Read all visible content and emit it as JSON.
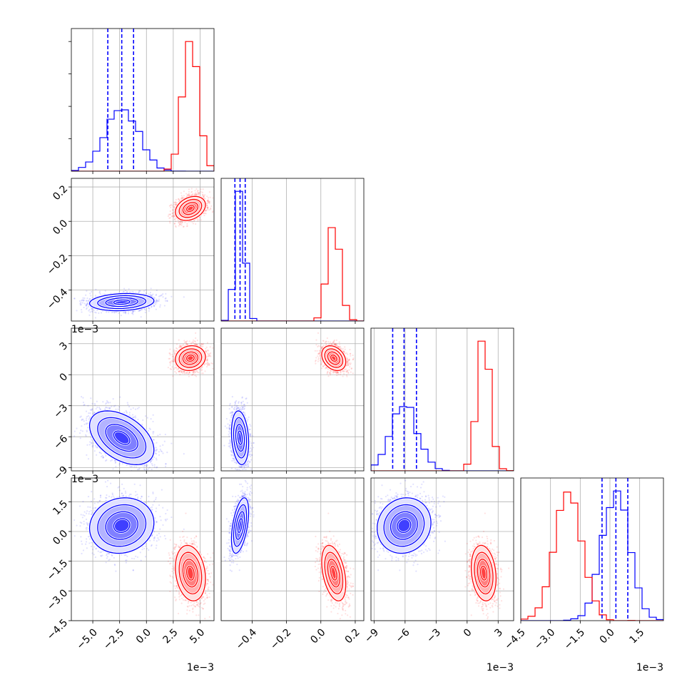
{
  "chart_data": {
    "type": "scatter",
    "kind": "corner plot",
    "series": [
      {
        "color": "#0000ff",
        "means": [
          -0.0023,
          -0.47,
          -0.0061,
          0.0003
        ],
        "sds": [
          0.0015,
          0.025,
          0.0013,
          0.0007
        ],
        "corr": [
          [
            1,
            0.15,
            -0.45,
            0.1
          ],
          [
            0.15,
            1,
            -0.2,
            0.5
          ],
          [
            -0.45,
            -0.2,
            1,
            0.1
          ],
          [
            0.1,
            0.5,
            0.1,
            1
          ]
        ],
        "quantile_lines": [
          [
            -0.0036,
            -0.0023,
            -0.0012
          ],
          [
            -0.5,
            -0.47,
            -0.44
          ],
          [
            -0.0072,
            -0.0061,
            -0.0049
          ],
          [
            -0.0004,
            0.0003,
            0.0009
          ]
        ]
      },
      {
        "color": "#ff0000",
        "means": [
          0.0041,
          0.075,
          0.0016,
          -0.0021
        ],
        "sds": [
          0.0007,
          0.035,
          0.0006,
          0.0007
        ],
        "corr": [
          [
            1,
            0.3,
            0.1,
            -0.2
          ],
          [
            0.3,
            1,
            -0.3,
            -0.4
          ],
          [
            0.1,
            -0.3,
            1,
            -0.2
          ],
          [
            -0.2,
            -0.4,
            -0.2,
            1
          ]
        ],
        "quantile_lines": []
      }
    ],
    "axes": [
      {
        "range": [
          -0.007,
          0.0063
        ],
        "ticks": [
          -0.005,
          -0.0025,
          0.0,
          0.0025,
          0.005
        ],
        "tick_labels": [
          "−5.0",
          "−2.5",
          "0.0",
          "2.5",
          "5.0"
        ],
        "offset_label": "1e−3"
      },
      {
        "range": [
          -0.58,
          0.25
        ],
        "ticks": [
          -0.4,
          -0.2,
          0.0,
          0.2
        ],
        "tick_labels": [
          "−0.4",
          "−0.2",
          "0.0",
          "0.2"
        ],
        "offset_label": ""
      },
      {
        "range": [
          -0.0093,
          0.0045
        ],
        "ticks": [
          -0.009,
          -0.006,
          -0.003,
          0.0,
          0.003
        ],
        "tick_labels": [
          "−9",
          "−6",
          "−3",
          "0",
          "3"
        ],
        "offset_label": "1e−3"
      },
      {
        "range": [
          -0.0045,
          0.0027
        ],
        "ticks": [
          -0.0045,
          -0.003,
          -0.0015,
          0.0,
          0.0015
        ],
        "tick_labels": [
          "−4.5",
          "−3.0",
          "−1.5",
          "0.0",
          "1.5"
        ],
        "offset_label": "1e−3"
      }
    ],
    "axis_labels": [
      "",
      "",
      "",
      ""
    ],
    "points_per_series": 4000,
    "grid": true,
    "legend": "none",
    "contour_levels_sigma": [
      0.5,
      1.0,
      1.5,
      2.0
    ]
  }
}
